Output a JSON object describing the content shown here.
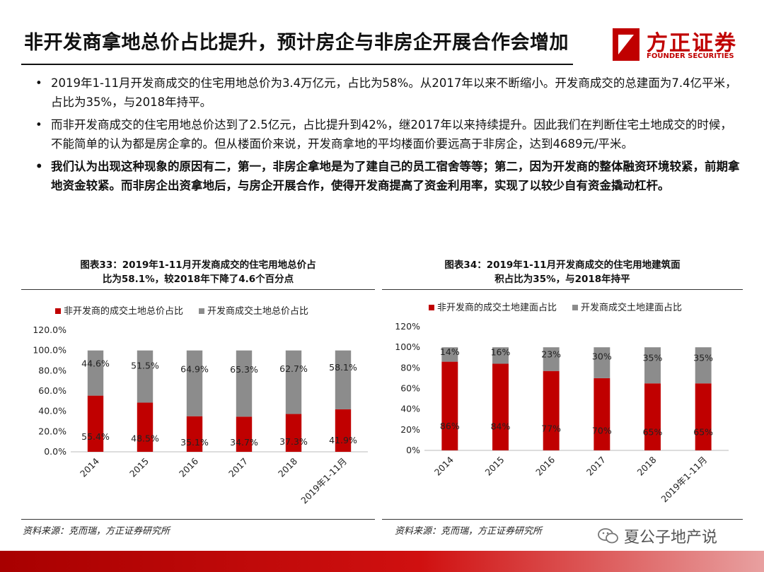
{
  "header": {
    "title": "非开发商拿地总价占比提升，预计房企与非房企开展合作会增加",
    "logo_cn": "方正证券",
    "logo_en": "FOUNDER SECURITIES"
  },
  "bullets": [
    {
      "text": "2019年1-11月开发商成交的住宅用地总价为3.4万亿元，占比为58%。从2017年以来不断缩小。开发商成交的总建面为7.4亿平米，占比为35%，与2018年持平。",
      "bold": false
    },
    {
      "text": "而非开发商成交的住宅用地总价达到了2.5亿元，占比提升到42%，继2017年以来持续提升。因此我们在判断住宅土地成交的时候，不能简单的认为都是房企拿的。但从楼面价来说，开发商拿地的平均楼面价要远高于非房企，达到4689元/平米。",
      "bold": false
    },
    {
      "text": "我们认为出现这种现象的原因有二，第一，非房企拿地是为了建自己的员工宿舍等等；第二，因为开发商的整体融资环境较紧，前期拿地资金较紧。而非房企出资拿地后，与房企开展合作，使得开发商提高了资金利用率，实现了以较少自有资金撬动杠杆。",
      "bold": true
    }
  ],
  "colors": {
    "red": "#c00000",
    "gray": "#8c8c8c",
    "brand": "#c00000"
  },
  "chart_data": [
    {
      "type": "bar",
      "stacked": true,
      "title_lines": [
        "图表33：2019年1-11月开发商成交的住宅用地总价占",
        "比为58.1%，较2018年下降了4.6个百分点"
      ],
      "categories": [
        "2014",
        "2015",
        "2016",
        "2017",
        "2018",
        "2019年1-11月"
      ],
      "series": [
        {
          "name": "非开发商的成交土地总价占比",
          "color": "#c00000",
          "values": [
            55.4,
            48.5,
            35.1,
            34.7,
            37.3,
            41.9
          ],
          "labels": [
            "55.4%",
            "48.5%",
            "35.1%",
            "34.7%",
            "37.3%",
            "41.9%"
          ]
        },
        {
          "name": "开发商成交土地总价占比",
          "color": "#8c8c8c",
          "values": [
            44.6,
            51.5,
            64.9,
            65.3,
            62.7,
            58.1
          ],
          "labels": [
            "44.6%",
            "51.5%",
            "64.9%",
            "65.3%",
            "62.7%",
            "58.1%"
          ]
        }
      ],
      "ylim": [
        0,
        120
      ],
      "yticks": [
        0,
        20,
        40,
        60,
        80,
        100,
        120
      ],
      "ytick_labels": [
        "0.0%",
        "20.0%",
        "40.0%",
        "60.0%",
        "80.0%",
        "100.0%",
        "120.0%"
      ],
      "legend": "top-left",
      "source": "资料来源：克而瑞，方正证券研究所"
    },
    {
      "type": "bar",
      "stacked": true,
      "title_lines": [
        "图表34：2019年1-11月开发商成交的住宅用地建筑面",
        "积占比为35%，与2018年持平"
      ],
      "categories": [
        "2014",
        "2015",
        "2016",
        "2017",
        "2018",
        "2019年1-11月"
      ],
      "series": [
        {
          "name": "非开发商的成交土地建面占比",
          "color": "#c00000",
          "values": [
            86,
            84,
            77,
            70,
            65,
            65
          ],
          "labels": [
            "86%",
            "84%",
            "77%",
            "70%",
            "65%",
            "65%"
          ]
        },
        {
          "name": "开发商成交土地建面占比",
          "color": "#8c8c8c",
          "values": [
            14,
            16,
            23,
            30,
            35,
            35
          ],
          "labels": [
            "14%",
            "16%",
            "23%",
            "30%",
            "35%",
            "35%"
          ]
        }
      ],
      "ylim": [
        0,
        120
      ],
      "yticks": [
        0,
        20,
        40,
        60,
        80,
        100,
        120
      ],
      "ytick_labels": [
        "0%",
        "20%",
        "40%",
        "60%",
        "80%",
        "100%",
        "120%"
      ],
      "legend": "top-left",
      "source": "资料来源：克而瑞，方正证券研究所"
    }
  ],
  "watermark": "夏公子地产说"
}
